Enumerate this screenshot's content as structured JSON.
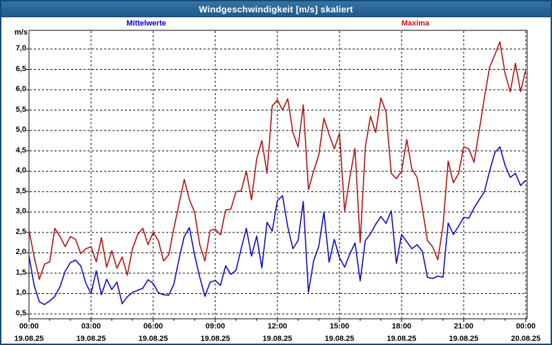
{
  "window": {
    "title": "Windgeschwindigkeit [m/s] skaliert"
  },
  "legend": {
    "mean_label": "Mittelwerte",
    "max_label": "Maxima",
    "mean_color": "#0000cc",
    "max_color": "#cc1111"
  },
  "colors": {
    "window_border": "#16497c",
    "titlebar_bg": "#276597",
    "grid": "#000000",
    "plot_border": "#000000",
    "mean_line": "#0a0ac4",
    "max_line": "#b01212"
  },
  "chart_data": {
    "type": "line",
    "title": "Windgeschwindigkeit [m/s] skaliert",
    "xlabel": "",
    "ylabel": "m/s",
    "ylim": [
      0.38,
      7.45
    ],
    "grid": "dashed",
    "start_hour": 0,
    "end_hour": 24,
    "interval_minutes": 15,
    "y_ticks": [
      7.0,
      6.5,
      6.0,
      5.5,
      5.0,
      4.5,
      4.0,
      3.5,
      3.0,
      2.5,
      2.0,
      1.5,
      1.0,
      0.5
    ],
    "y_tick_labels": [
      "7,0",
      "6,5",
      "6,0",
      "5,5",
      "5,0",
      "4,5",
      "4,0",
      "3,5",
      "3,0",
      "2,5",
      "2,0",
      "1,5",
      "1,0",
      "0,5"
    ],
    "x_major_step_hours": 3,
    "x_minor_step_hours": 1,
    "x_ticks": [
      {
        "hour": 0,
        "time": "00:00",
        "date": "19.08.25"
      },
      {
        "hour": 3,
        "time": "03:00",
        "date": "19.08.25"
      },
      {
        "hour": 6,
        "time": "06:00",
        "date": "19.08.25"
      },
      {
        "hour": 9,
        "time": "09:00",
        "date": "19.08.25"
      },
      {
        "hour": 12,
        "time": "12:00",
        "date": "19.08.25"
      },
      {
        "hour": 15,
        "time": "15:00",
        "date": "19.08.25"
      },
      {
        "hour": 18,
        "time": "18:00",
        "date": "19.08.25"
      },
      {
        "hour": 21,
        "time": "21:00",
        "date": "19.08.25"
      },
      {
        "hour": 24,
        "time": "00:00",
        "date": "20.08.25"
      }
    ],
    "series": [
      {
        "name": "Mittelwerte",
        "color": "#0a0ac4",
        "values": [
          1.93,
          1.2,
          0.8,
          0.73,
          0.82,
          0.93,
          1.17,
          1.55,
          1.76,
          1.82,
          1.68,
          1.25,
          1.0,
          1.56,
          0.97,
          1.35,
          1.1,
          1.28,
          0.75,
          0.92,
          1.03,
          1.08,
          1.13,
          1.34,
          1.25,
          1.02,
          0.97,
          0.96,
          1.23,
          1.85,
          2.4,
          2.62,
          1.95,
          1.4,
          0.93,
          1.28,
          1.32,
          1.2,
          1.68,
          1.47,
          1.57,
          2.1,
          2.6,
          1.92,
          2.41,
          1.63,
          2.75,
          2.53,
          3.28,
          3.4,
          2.64,
          2.1,
          2.3,
          3.26,
          1.03,
          1.8,
          2.16,
          3.0,
          1.77,
          2.33,
          1.88,
          1.65,
          1.97,
          2.24,
          1.31,
          2.3,
          2.47,
          2.7,
          2.89,
          2.72,
          3.03,
          1.74,
          2.45,
          2.27,
          2.1,
          2.2,
          2.04,
          1.4,
          1.37,
          1.43,
          1.4,
          2.73,
          2.45,
          2.65,
          2.87,
          2.85,
          3.1,
          3.3,
          3.5,
          4.0,
          4.45,
          4.6,
          4.15,
          3.85,
          3.95,
          3.65,
          3.78
        ]
      },
      {
        "name": "Maxima",
        "color": "#b01212",
        "values": [
          2.55,
          1.9,
          1.35,
          1.72,
          1.78,
          2.6,
          2.4,
          2.15,
          2.4,
          2.33,
          1.98,
          2.1,
          2.15,
          1.78,
          2.37,
          1.65,
          2.05,
          1.62,
          1.9,
          1.45,
          2.1,
          2.45,
          2.6,
          2.2,
          2.5,
          2.3,
          1.8,
          1.95,
          2.6,
          3.2,
          3.8,
          3.3,
          3.0,
          2.2,
          1.8,
          2.55,
          2.58,
          2.44,
          3.05,
          3.07,
          3.5,
          3.52,
          4.0,
          3.3,
          4.3,
          4.75,
          3.95,
          5.6,
          5.75,
          5.5,
          5.78,
          4.95,
          4.6,
          5.63,
          3.55,
          4.0,
          4.4,
          5.3,
          4.9,
          4.55,
          4.93,
          3.02,
          3.85,
          4.56,
          2.25,
          4.6,
          5.35,
          4.95,
          5.8,
          5.45,
          3.95,
          3.82,
          4.0,
          4.78,
          4.05,
          3.85,
          3.1,
          2.3,
          2.15,
          1.83,
          2.65,
          4.25,
          3.72,
          3.94,
          4.6,
          4.55,
          4.22,
          5.0,
          5.8,
          6.55,
          6.85,
          7.18,
          6.4,
          5.95,
          6.65,
          5.95,
          6.5
        ]
      }
    ]
  }
}
